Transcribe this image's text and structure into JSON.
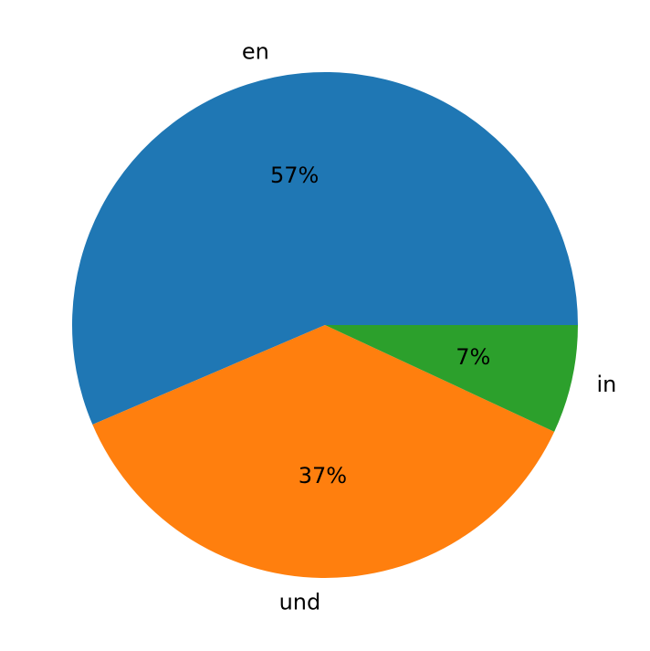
{
  "chart_data": {
    "type": "pie",
    "categories": [
      "en",
      "und",
      "in"
    ],
    "values": [
      57,
      37,
      7
    ],
    "value_labels": [
      "57%",
      "37%",
      "7%"
    ],
    "colors": [
      "#1f77b4",
      "#ff7f0e",
      "#2ca02c"
    ]
  }
}
